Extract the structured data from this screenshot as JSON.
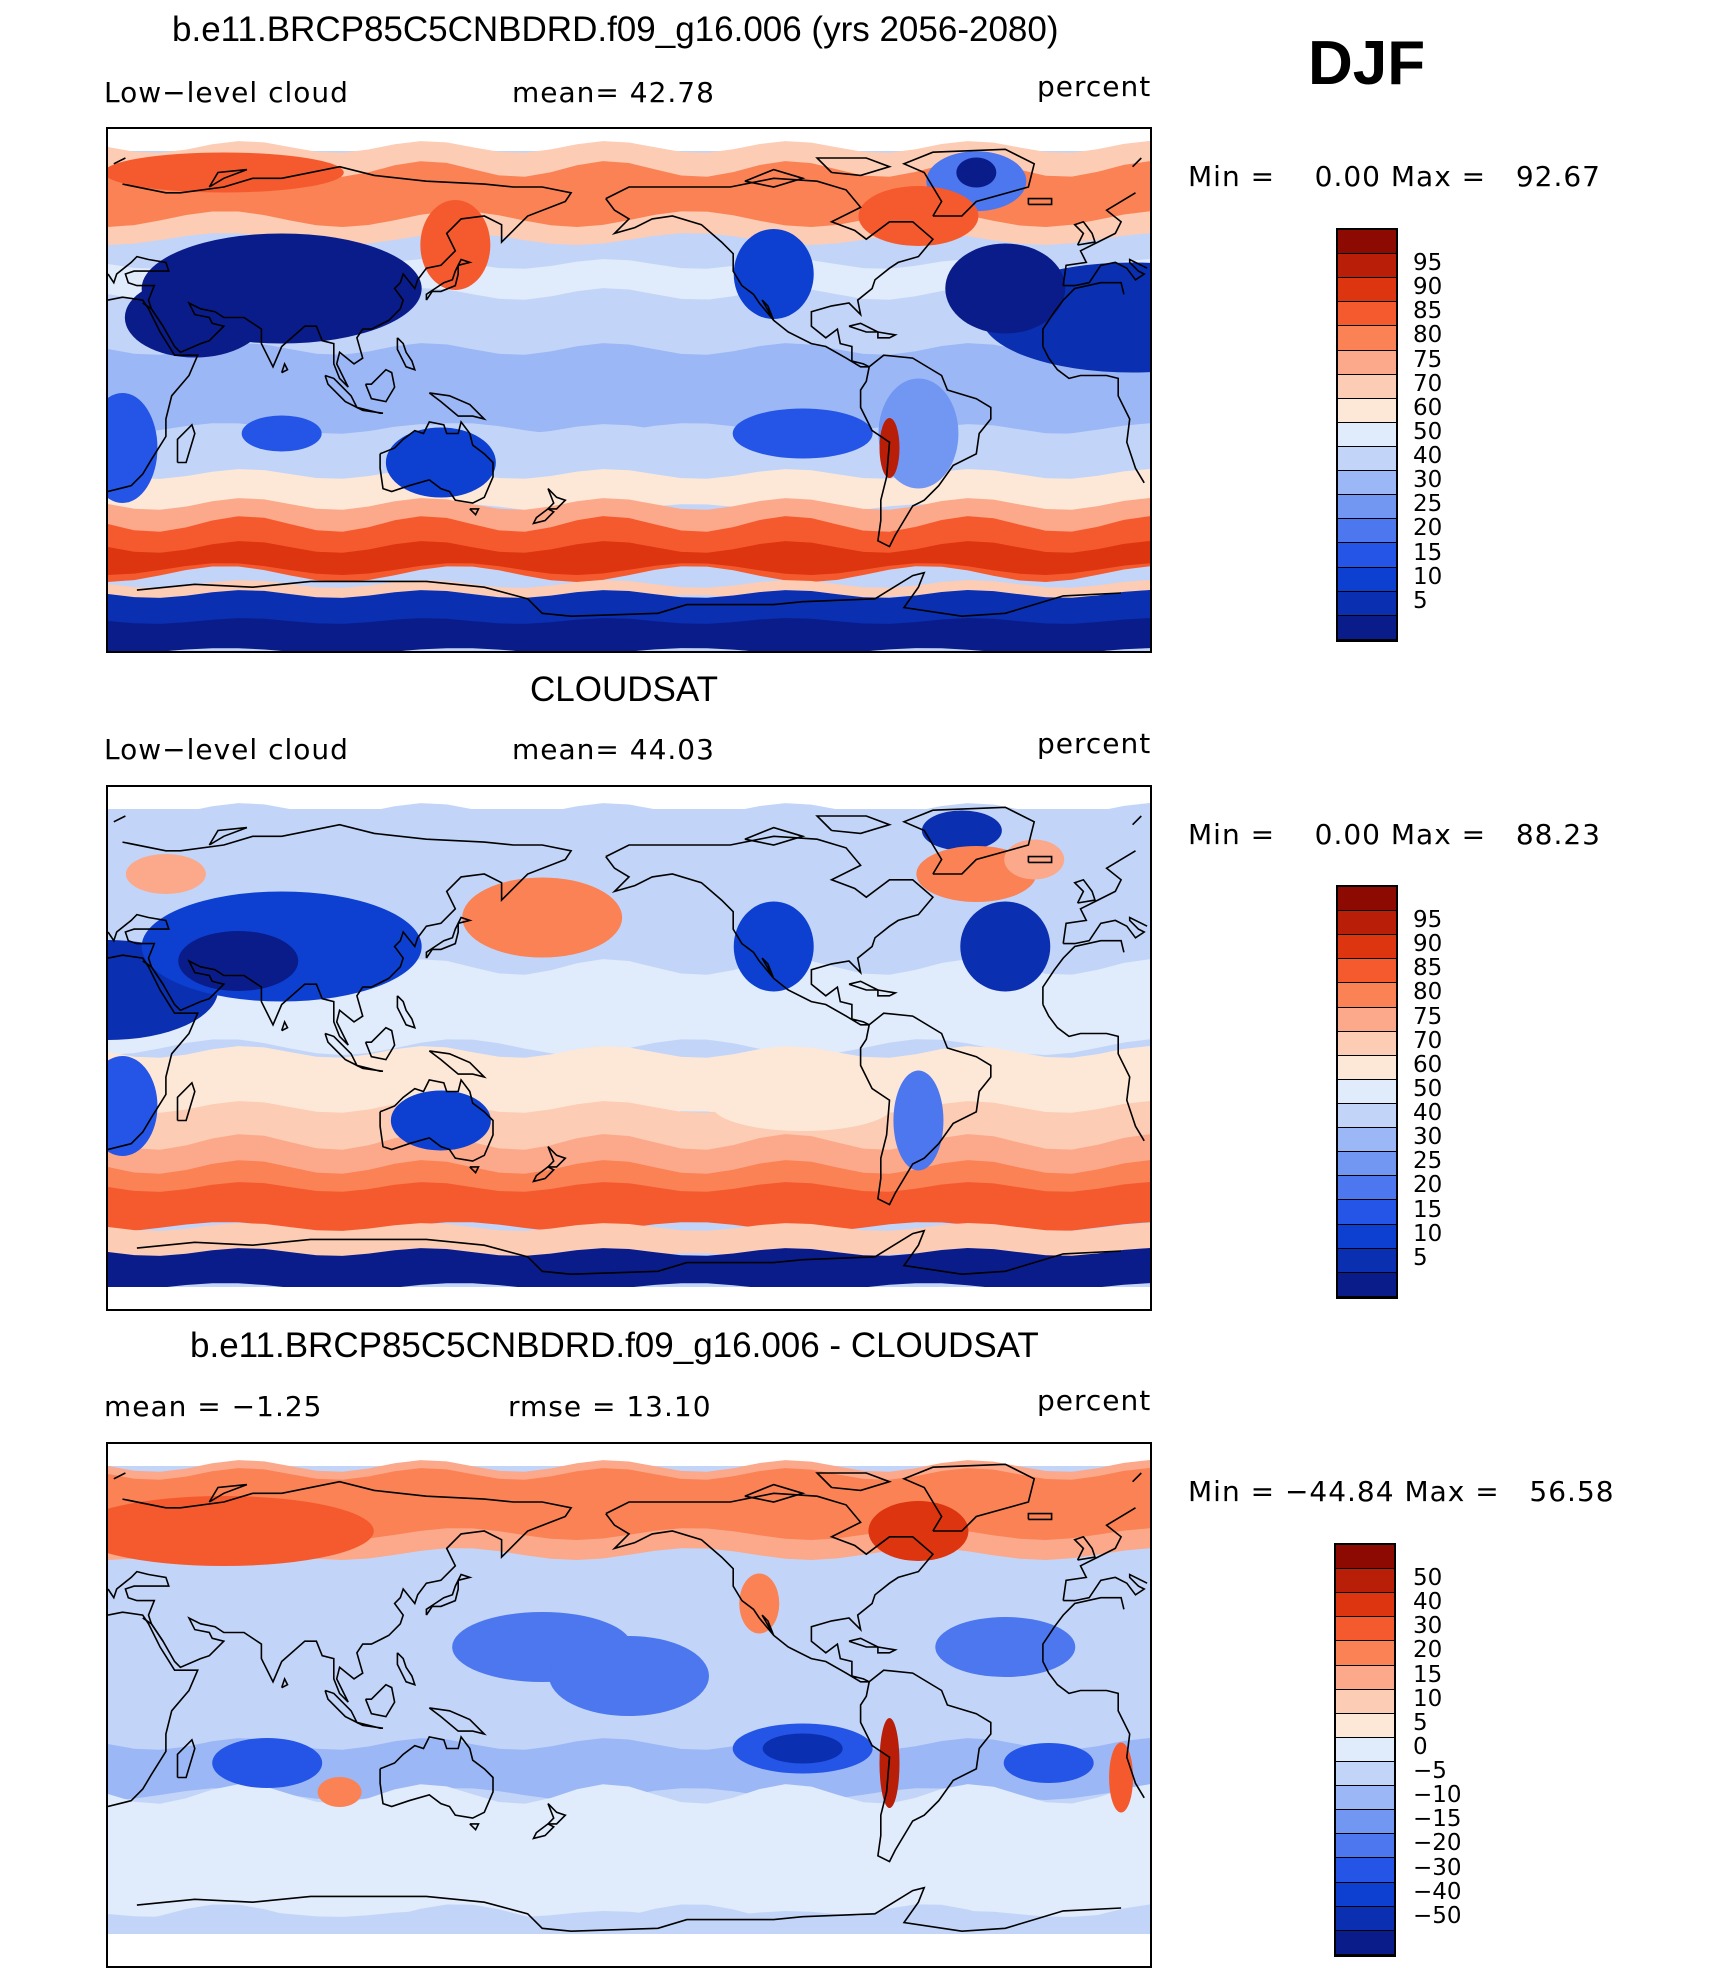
{
  "season": "DJF",
  "colors": {
    "abs_scale": [
      "#0a1c8a",
      "#0a2fb0",
      "#0d40d0",
      "#2455e6",
      "#4c77ee",
      "#7297f2",
      "#9cb7f5",
      "#c2d5f8",
      "#e0ebfb",
      "#fde8d8",
      "#fcccb4",
      "#fba98a",
      "#fa8255",
      "#f55a2e",
      "#dc3510",
      "#b81e08",
      "#8c0a02"
    ],
    "diff_scale": [
      "#0a1c8a",
      "#0a2fb0",
      "#0d40d0",
      "#2455e6",
      "#4c77ee",
      "#7297f2",
      "#9cb7f5",
      "#c2d5f8",
      "#e0ebfb",
      "#fde8d8",
      "#fcccb4",
      "#fba98a",
      "#fa8255",
      "#f55a2e",
      "#dc3510",
      "#b81e08",
      "#8c0a02"
    ]
  },
  "panels": [
    {
      "title": "b.e11.BRCP85C5CNBDRD.f09_g16.006 (yrs 2056-2080)",
      "left_label": "Low−level cloud",
      "center_label": "mean=   42.78",
      "right_label": "percent",
      "minmax": "Min =    0.00 Max =   92.67",
      "colorbar_labels": [
        "95",
        "90",
        "85",
        "80",
        "75",
        "70",
        "60",
        "50",
        "40",
        "30",
        "25",
        "20",
        "15",
        "10",
        "5"
      ],
      "pattern": "model"
    },
    {
      "title": "CLOUDSAT",
      "left_label": "Low−level cloud",
      "center_label": "mean=   44.03",
      "right_label": "percent",
      "minmax": "Min =    0.00 Max =   88.23",
      "colorbar_labels": [
        "95",
        "90",
        "85",
        "80",
        "75",
        "70",
        "60",
        "50",
        "40",
        "30",
        "25",
        "20",
        "15",
        "10",
        "5"
      ],
      "pattern": "obs"
    },
    {
      "title": "b.e11.BRCP85C5CNBDRD.f09_g16.006 - CLOUDSAT",
      "left_label": "mean =   −1.25",
      "center_label": "rmse =   13.10",
      "right_label": "percent",
      "minmax": "Min = −44.84 Max =   56.58",
      "colorbar_labels": [
        "50",
        "40",
        "30",
        "20",
        "15",
        "10",
        "5",
        "0",
        "−5",
        "−10",
        "−15",
        "−20",
        "−30",
        "−40",
        "−50"
      ],
      "pattern": "diff"
    }
  ]
}
